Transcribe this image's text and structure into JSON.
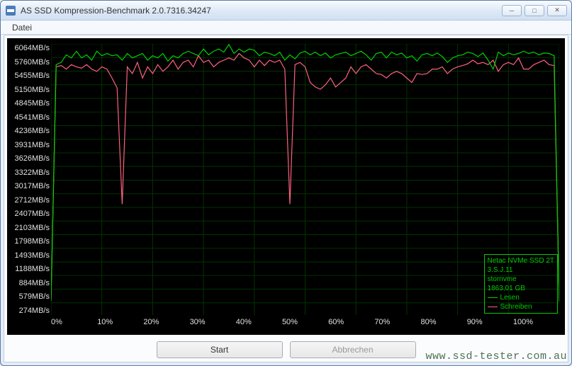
{
  "window": {
    "title": "AS SSD Kompression-Benchmark 2.0.7316.34247"
  },
  "menu": {
    "file": "Datei"
  },
  "chart": {
    "type": "line",
    "background_color": "#000000",
    "grid_color": "#003300",
    "axis_text_color": "#e0e0e0",
    "y_max": 6064,
    "y_min": 0,
    "y_ticks": [
      "6064MB/s",
      "5760MB/s",
      "5455MB/s",
      "5150MB/s",
      "4845MB/s",
      "4541MB/s",
      "4236MB/s",
      "3931MB/s",
      "3626MB/s",
      "3322MB/s",
      "3017MB/s",
      "2712MB/s",
      "2407MB/s",
      "2103MB/s",
      "1798MB/s",
      "1493MB/s",
      "1188MB/s",
      "884MB/s",
      "579MB/s",
      "274MB/s"
    ],
    "x_ticks": [
      "0%",
      "10%",
      "20%",
      "30%",
      "40%",
      "50%",
      "60%",
      "70%",
      "80%",
      "90%",
      "100%"
    ],
    "series": {
      "read": {
        "label": "Lesen",
        "color": "#00d000",
        "points": [
          [
            0,
            320
          ],
          [
            1,
            5600
          ],
          [
            2,
            5650
          ],
          [
            3,
            5820
          ],
          [
            4,
            5750
          ],
          [
            5,
            5900
          ],
          [
            6,
            5750
          ],
          [
            7,
            5820
          ],
          [
            8,
            5700
          ],
          [
            9,
            5900
          ],
          [
            10,
            5800
          ],
          [
            11,
            5850
          ],
          [
            12,
            5800
          ],
          [
            13,
            5820
          ],
          [
            14,
            5700
          ],
          [
            15,
            5850
          ],
          [
            16,
            5750
          ],
          [
            17,
            5800
          ],
          [
            18,
            5850
          ],
          [
            19,
            5700
          ],
          [
            20,
            5800
          ],
          [
            21,
            5750
          ],
          [
            22,
            5850
          ],
          [
            23,
            5680
          ],
          [
            24,
            5800
          ],
          [
            25,
            5750
          ],
          [
            26,
            5850
          ],
          [
            27,
            5900
          ],
          [
            28,
            5850
          ],
          [
            29,
            5800
          ],
          [
            30,
            5950
          ],
          [
            31,
            5820
          ],
          [
            32,
            5900
          ],
          [
            33,
            5950
          ],
          [
            34,
            5880
          ],
          [
            35,
            6050
          ],
          [
            36,
            5850
          ],
          [
            37,
            5950
          ],
          [
            38,
            5880
          ],
          [
            39,
            5950
          ],
          [
            40,
            5920
          ],
          [
            41,
            5800
          ],
          [
            42,
            5880
          ],
          [
            43,
            5850
          ],
          [
            44,
            5800
          ],
          [
            45,
            5880
          ],
          [
            46,
            5700
          ],
          [
            47,
            5820
          ],
          [
            48,
            5730
          ],
          [
            49,
            5860
          ],
          [
            50,
            5900
          ],
          [
            51,
            5820
          ],
          [
            52,
            5880
          ],
          [
            53,
            5800
          ],
          [
            54,
            5860
          ],
          [
            55,
            5750
          ],
          [
            56,
            5820
          ],
          [
            57,
            5850
          ],
          [
            58,
            5880
          ],
          [
            59,
            5800
          ],
          [
            60,
            5850
          ],
          [
            61,
            5900
          ],
          [
            62,
            5820
          ],
          [
            63,
            5700
          ],
          [
            64,
            5850
          ],
          [
            65,
            5880
          ],
          [
            66,
            5750
          ],
          [
            67,
            5880
          ],
          [
            68,
            5820
          ],
          [
            69,
            5860
          ],
          [
            70,
            5750
          ],
          [
            71,
            5800
          ],
          [
            72,
            5680
          ],
          [
            73,
            5820
          ],
          [
            74,
            5850
          ],
          [
            75,
            5800
          ],
          [
            76,
            5860
          ],
          [
            77,
            5780
          ],
          [
            78,
            5650
          ],
          [
            79,
            5750
          ],
          [
            80,
            5800
          ],
          [
            81,
            5820
          ],
          [
            82,
            5880
          ],
          [
            83,
            5850
          ],
          [
            84,
            5780
          ],
          [
            85,
            5860
          ],
          [
            86,
            5700
          ],
          [
            87,
            5500
          ],
          [
            88,
            5880
          ],
          [
            89,
            5800
          ],
          [
            90,
            5860
          ],
          [
            91,
            5820
          ],
          [
            92,
            5850
          ],
          [
            93,
            5900
          ],
          [
            94,
            5850
          ],
          [
            95,
            5880
          ],
          [
            96,
            5820
          ],
          [
            97,
            5860
          ],
          [
            98,
            5850
          ],
          [
            99,
            5800
          ],
          [
            100,
            300
          ]
        ]
      },
      "write": {
        "label": "Schreiben",
        "color": "#ff6080",
        "points": [
          [
            0,
            320
          ],
          [
            1,
            5550
          ],
          [
            2,
            5580
          ],
          [
            3,
            5500
          ],
          [
            4,
            5600
          ],
          [
            5,
            5550
          ],
          [
            6,
            5520
          ],
          [
            7,
            5600
          ],
          [
            8,
            5500
          ],
          [
            9,
            5450
          ],
          [
            10,
            5550
          ],
          [
            11,
            5500
          ],
          [
            12,
            5300
          ],
          [
            13,
            5080
          ],
          [
            14,
            2480
          ],
          [
            15,
            5550
          ],
          [
            16,
            5400
          ],
          [
            17,
            5650
          ],
          [
            18,
            5300
          ],
          [
            19,
            5550
          ],
          [
            20,
            5400
          ],
          [
            21,
            5600
          ],
          [
            22,
            5450
          ],
          [
            23,
            5550
          ],
          [
            24,
            5700
          ],
          [
            25,
            5500
          ],
          [
            26,
            5650
          ],
          [
            27,
            5700
          ],
          [
            28,
            5550
          ],
          [
            29,
            5800
          ],
          [
            30,
            5650
          ],
          [
            31,
            5700
          ],
          [
            32,
            5550
          ],
          [
            33,
            5650
          ],
          [
            34,
            5700
          ],
          [
            35,
            5750
          ],
          [
            36,
            5700
          ],
          [
            37,
            5850
          ],
          [
            38,
            5750
          ],
          [
            39,
            5700
          ],
          [
            40,
            5550
          ],
          [
            41,
            5700
          ],
          [
            42,
            5580
          ],
          [
            43,
            5700
          ],
          [
            44,
            5650
          ],
          [
            45,
            5700
          ],
          [
            46,
            5500
          ],
          [
            47,
            2480
          ],
          [
            48,
            5600
          ],
          [
            49,
            5650
          ],
          [
            50,
            5550
          ],
          [
            51,
            5200
          ],
          [
            52,
            5100
          ],
          [
            53,
            5050
          ],
          [
            54,
            5150
          ],
          [
            55,
            5300
          ],
          [
            56,
            5100
          ],
          [
            57,
            5200
          ],
          [
            58,
            5300
          ],
          [
            59,
            5550
          ],
          [
            60,
            5400
          ],
          [
            61,
            5550
          ],
          [
            62,
            5600
          ],
          [
            63,
            5500
          ],
          [
            64,
            5400
          ],
          [
            65,
            5380
          ],
          [
            66,
            5300
          ],
          [
            67,
            5400
          ],
          [
            68,
            5450
          ],
          [
            69,
            5400
          ],
          [
            70,
            5300
          ],
          [
            71,
            5200
          ],
          [
            72,
            5400
          ],
          [
            73,
            5380
          ],
          [
            74,
            5400
          ],
          [
            75,
            5500
          ],
          [
            76,
            5500
          ],
          [
            77,
            5550
          ],
          [
            78,
            5400
          ],
          [
            79,
            5500
          ],
          [
            80,
            5550
          ],
          [
            81,
            5580
          ],
          [
            82,
            5620
          ],
          [
            83,
            5700
          ],
          [
            84,
            5620
          ],
          [
            85,
            5650
          ],
          [
            86,
            5600
          ],
          [
            87,
            5700
          ],
          [
            88,
            5450
          ],
          [
            89,
            5600
          ],
          [
            90,
            5650
          ],
          [
            91,
            5600
          ],
          [
            92,
            5750
          ],
          [
            93,
            5500
          ],
          [
            94,
            5500
          ],
          [
            95,
            5600
          ],
          [
            96,
            5650
          ],
          [
            97,
            5700
          ],
          [
            98,
            5600
          ],
          [
            99,
            5580
          ],
          [
            100,
            300
          ]
        ]
      }
    },
    "legend": {
      "border_color": "#00cc00",
      "text_color": "#00cc00",
      "line1": "Netac NVMe SSD 2T",
      "line2": "3.S.J.11",
      "line3": "stornvme",
      "line4": "1863,01 GB"
    }
  },
  "buttons": {
    "start": "Start",
    "abort": "Abbrechen"
  },
  "watermark": "www.ssd-tester.com.au"
}
